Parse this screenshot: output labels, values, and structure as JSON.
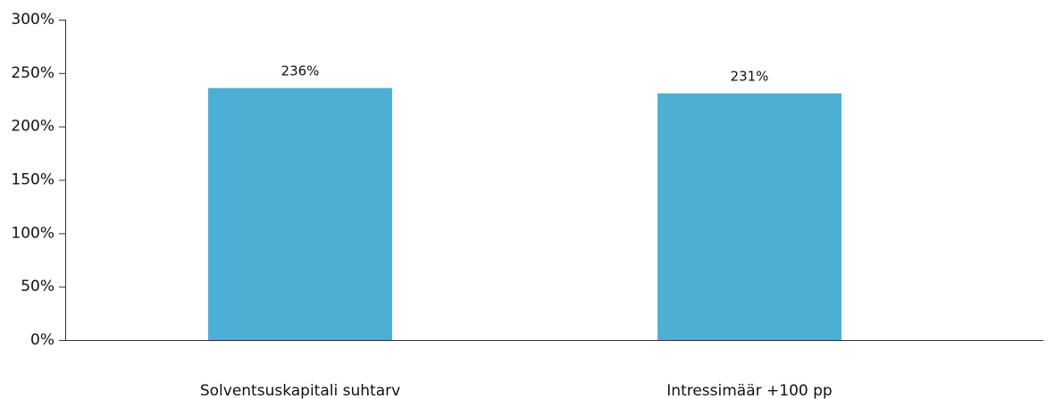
{
  "chart_data": {
    "type": "bar",
    "categories": [
      "Solventsuskapitali suhtarv",
      "Intressimäär +100 pp"
    ],
    "values": [
      236,
      231
    ],
    "data_labels": [
      "236%",
      "231%"
    ],
    "title": "",
    "xlabel": "",
    "ylabel": "",
    "ylim": [
      0,
      300
    ],
    "yticks": [
      0,
      50,
      100,
      150,
      200,
      250,
      300
    ],
    "ytick_labels": [
      "0%",
      "50%",
      "100%",
      "150%",
      "200%",
      "250%",
      "300%"
    ],
    "grid": false,
    "legend": "none",
    "colors": {
      "bar": "#4DAFD3",
      "axis": "#333333",
      "text": "#111111"
    }
  }
}
